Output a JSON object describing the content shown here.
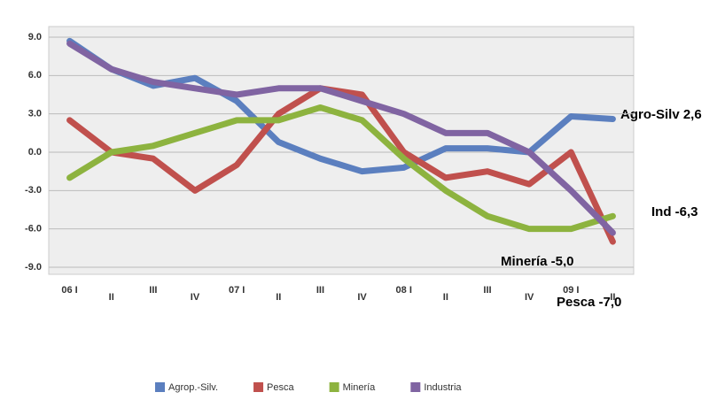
{
  "chart_data": {
    "type": "line",
    "categories": [
      "06 I",
      "II",
      "III",
      "IV",
      "07 I",
      "II",
      "III",
      "IV",
      "08 I",
      "II",
      "III",
      "IV",
      "09 I",
      "II"
    ],
    "series": [
      {
        "name": "Agrop.-Silv.",
        "color": "#5b7fbf",
        "values": [
          8.7,
          6.5,
          5.2,
          5.8,
          4.0,
          0.8,
          -0.5,
          -1.5,
          -1.2,
          0.3,
          0.3,
          0.0,
          2.8,
          2.6
        ]
      },
      {
        "name": "Pesca",
        "color": "#c0504d",
        "values": [
          2.5,
          0.0,
          -0.5,
          -3.0,
          -1.0,
          3.0,
          5.0,
          4.5,
          0.0,
          -2.0,
          -1.5,
          -2.5,
          0.0,
          -7.0
        ]
      },
      {
        "name": "Minería",
        "color": "#8db33f",
        "values": [
          -2.0,
          0.0,
          0.5,
          1.5,
          2.5,
          2.5,
          3.5,
          2.5,
          -0.5,
          -3.0,
          -5.0,
          -6.0,
          -6.0,
          -5.0
        ]
      },
      {
        "name": "Industria",
        "color": "#8064a2",
        "values": [
          8.5,
          6.5,
          5.5,
          5.0,
          4.5,
          5.0,
          5.0,
          4.0,
          3.0,
          1.5,
          1.5,
          0.0,
          -3.0,
          -6.3
        ]
      }
    ],
    "ylim": [
      -9,
      9
    ],
    "yticks": [
      {
        "value": -9,
        "label": "-9.0"
      },
      {
        "value": -6,
        "label": "-6.0"
      },
      {
        "value": -3,
        "label": "-3.0"
      },
      {
        "value": 0,
        "label": "0.0"
      },
      {
        "value": 3,
        "label": "3.0"
      },
      {
        "value": 6,
        "label": "6.0"
      },
      {
        "value": 9,
        "label": "9.0"
      }
    ],
    "grid": true,
    "legend": "bottom",
    "annotations": [
      "Agro-Silv 2,6",
      "Ind -6,3",
      "Minería -5,0",
      "Pesca -7,0"
    ]
  }
}
